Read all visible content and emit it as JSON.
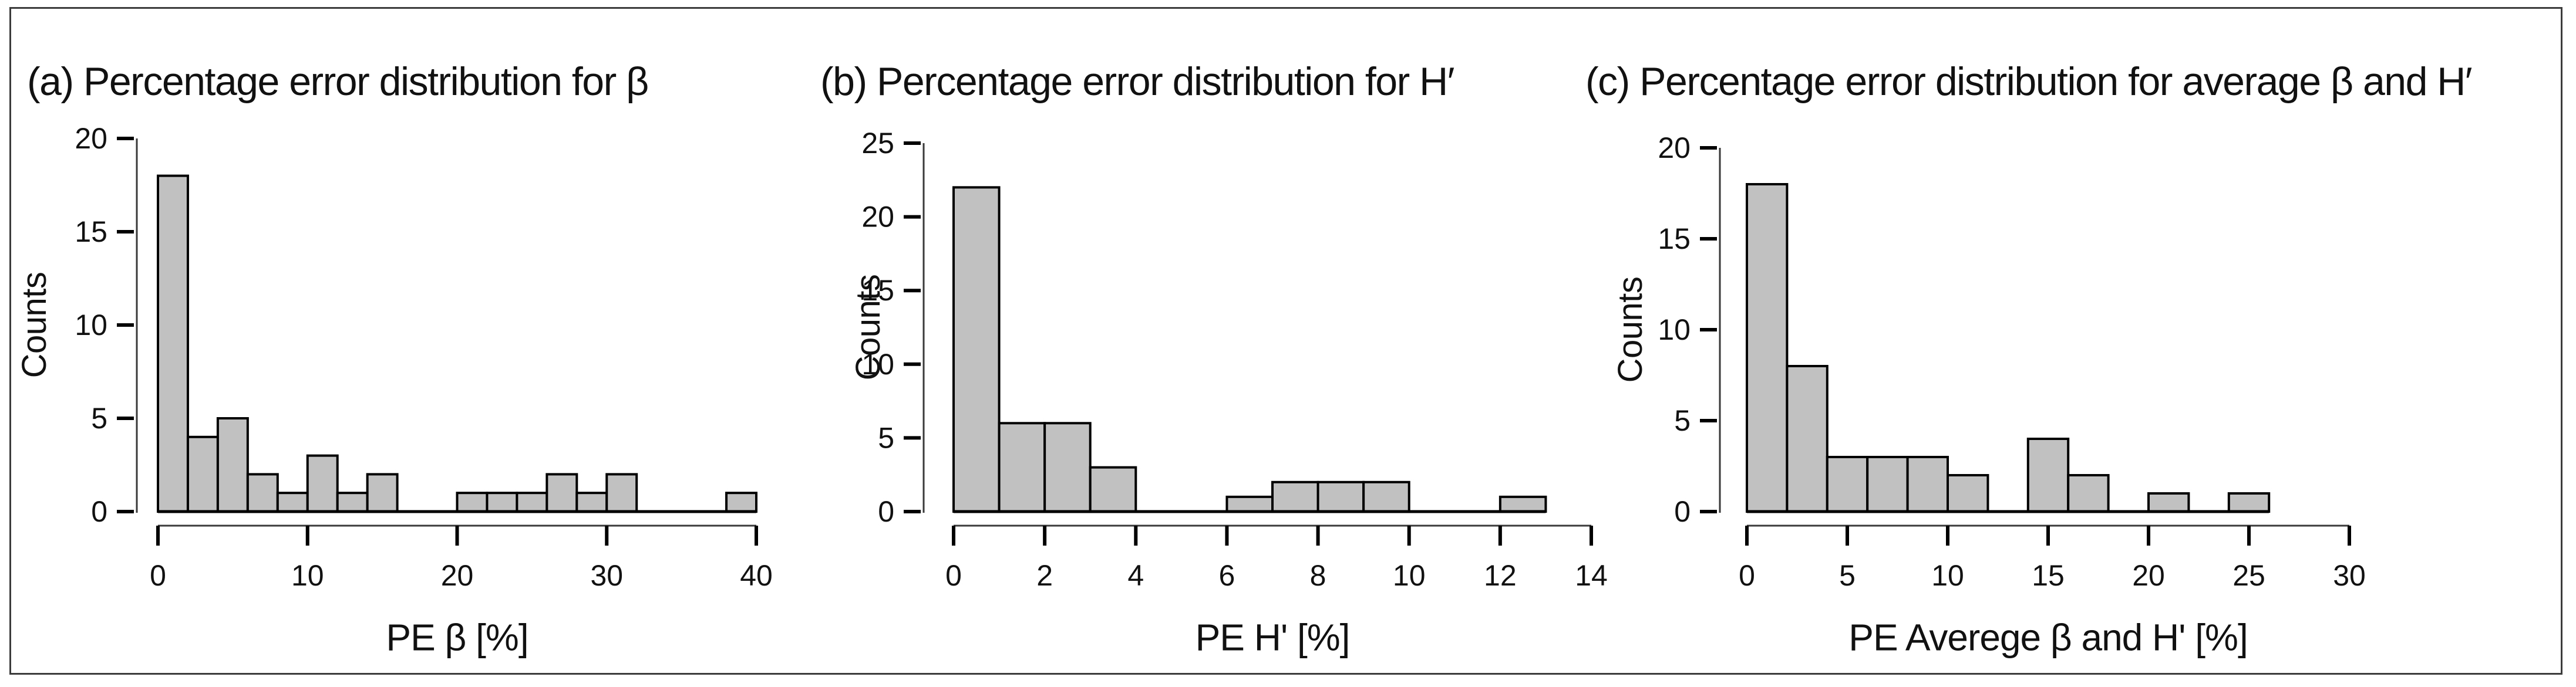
{
  "figure": {
    "background": "#ffffff",
    "border_color": "#3c3c3c",
    "bar_fill": "#c1c1c1",
    "bar_stroke": "#000000",
    "axis_color": "#3a3a3a",
    "tick_color": "#000000",
    "text_color": "#111111"
  },
  "chart_data": [
    {
      "type": "bar",
      "panel": "a",
      "title": "(a) Percentage error distribution for β",
      "xlabel": "PE β [%]",
      "ylabel": "Counts",
      "bin_start": 0,
      "bin_width": 2,
      "values": [
        18,
        4,
        5,
        2,
        1,
        3,
        1,
        2,
        0,
        0,
        1,
        1,
        1,
        2,
        1,
        2,
        0,
        0,
        0,
        1
      ],
      "xlim": [
        0,
        40
      ],
      "ylim": [
        0,
        20
      ],
      "x_ticks": [
        0,
        10,
        20,
        30,
        40
      ],
      "y_ticks": [
        0,
        5,
        10,
        15,
        20
      ],
      "grid": false,
      "legend": null
    },
    {
      "type": "bar",
      "panel": "b",
      "title": "(b) Percentage error distribution for H′",
      "xlabel": "PE H' [%]",
      "ylabel": "Counts",
      "bin_start": 0,
      "bin_width": 1,
      "values": [
        22,
        6,
        6,
        3,
        0,
        0,
        1,
        2,
        2,
        2,
        0,
        0,
        1,
        0
      ],
      "xlim": [
        0,
        14
      ],
      "ylim": [
        0,
        25
      ],
      "x_ticks": [
        0,
        2,
        4,
        6,
        8,
        10,
        12,
        14
      ],
      "y_ticks": [
        0,
        5,
        10,
        15,
        20,
        25
      ],
      "grid": false,
      "legend": null
    },
    {
      "type": "bar",
      "panel": "c",
      "title": "(c) Percentage error distribution for average β and H′",
      "xlabel": "PE Averege β and H' [%]",
      "ylabel": "Counts",
      "bin_start": 0,
      "bin_width": 2,
      "values": [
        18,
        8,
        3,
        3,
        3,
        2,
        0,
        4,
        2,
        0,
        1,
        0,
        1
      ],
      "xlim": [
        0,
        30
      ],
      "ylim": [
        0,
        20
      ],
      "x_ticks": [
        0,
        5,
        10,
        15,
        20,
        25,
        30
      ],
      "y_ticks": [
        0,
        5,
        10,
        15,
        20
      ],
      "grid": false,
      "legend": null
    }
  ]
}
